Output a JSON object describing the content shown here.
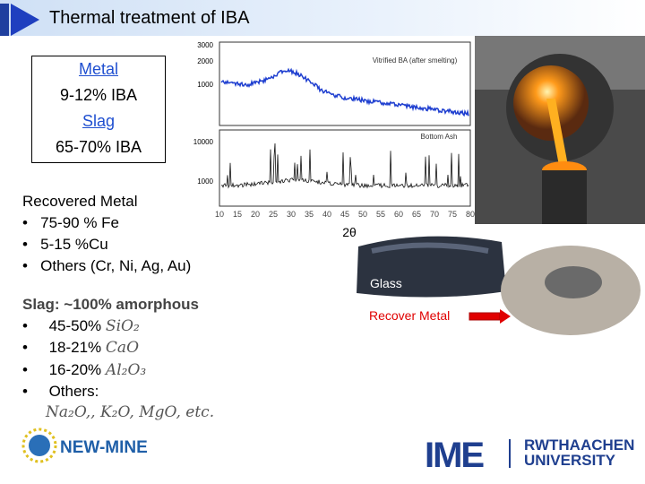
{
  "header": {
    "title": "Thermal treatment of IBA"
  },
  "box": {
    "lines": [
      "Metal",
      "9-12% IBA",
      "Slag",
      "65-70% IBA"
    ]
  },
  "recovered": {
    "heading": "Recovered Metal",
    "items": [
      "75-90 % Fe",
      "5-15 %Cu",
      "Others (Cr, Ni, Ag, Au)"
    ]
  },
  "xrd": {
    "top_label": "Vitrified BA (after smelting)",
    "bottom_label": "Bottom Ash",
    "top_ticks": [
      "3000",
      "2000",
      "1000"
    ],
    "bottom_ticks": [
      "10000",
      "1000"
    ],
    "x_ticks": [
      "10",
      "15",
      "20",
      "25",
      "30",
      "35",
      "40",
      "45",
      "50",
      "55",
      "60",
      "65",
      "70",
      "75",
      "80"
    ],
    "x_label": "2θ"
  },
  "photos": {
    "glass": "Glass",
    "metal": "Recover Metal"
  },
  "slag": {
    "heading": "Slag: ~100% amorphous",
    "items": [
      [
        "45-50%",
        "SiO₂"
      ],
      [
        "18-21%",
        "CaO"
      ],
      [
        "16-20%",
        "Al₂O₃"
      ],
      [
        "Others:",
        ""
      ]
    ],
    "others": "Na₂O,, K₂O, MgO, etc."
  },
  "logos": {
    "newmine": "NEW-MINE",
    "ime": "IME",
    "rwth1": "RWTHAACHEN",
    "rwth2": "UNIVERSITY"
  }
}
